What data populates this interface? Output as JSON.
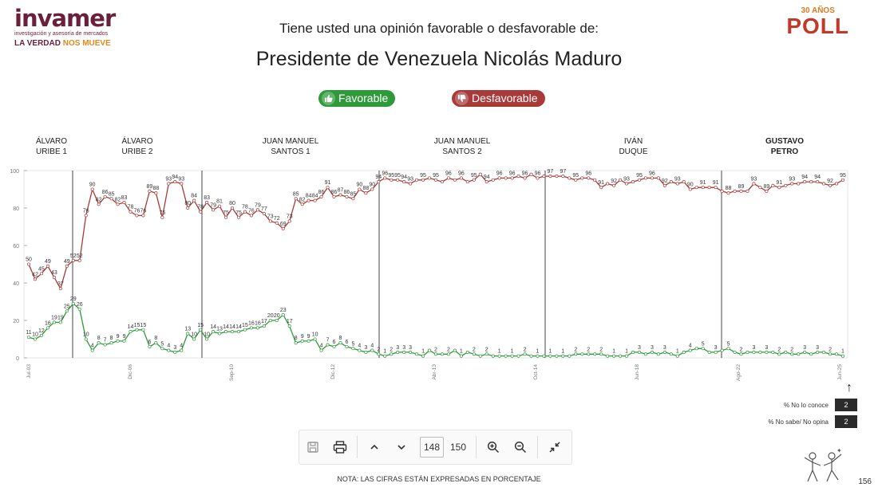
{
  "brand": {
    "logo": "invamer",
    "logo_subtitle": "investigación y asesoría de mercados",
    "tagline_a": "LA VERDAD",
    "tagline_b": "NOS MUEVE",
    "poll_years": "30 AÑOS",
    "poll_word": "POLL"
  },
  "header": {
    "question": "Tiene usted una opinión favorable o desfavorable de:",
    "subject": "Presidente de Venezuela Nicolás Maduro"
  },
  "legend_pills": {
    "favorable": "Favorable",
    "desfavorable": "Desfavorable",
    "favorable_color": "#2e9a3a",
    "desfavorable_color": "#a83a3a"
  },
  "side_legend": {
    "no_conoce_label": "% No lo conoce",
    "no_conoce_value": "2",
    "no_sabe_label": "% No sabe/ No opina",
    "no_sabe_value": "2"
  },
  "toolbar": {
    "current_page": "148",
    "total_pages": "150"
  },
  "footer": {
    "note": "NOTA: LAS CIFRAS ESTÁN EXPRESADAS EN PORCENTAJE",
    "page_number": "156"
  },
  "chart_data": {
    "type": "line",
    "title": "Presidente de Venezuela Nicolás Maduro",
    "ylim": [
      0,
      100
    ],
    "yticks": [
      "0",
      "20",
      "40",
      "60",
      "80",
      "100"
    ],
    "x_ticks_sample": [
      "Jul-03",
      "Dic-06",
      "Sep-10",
      "Dic-12",
      "Abr-13",
      "Oct-14",
      "Jun-18",
      "Ago-22",
      "Jun-25"
    ],
    "periods": [
      {
        "name": "ÁLVARO\nURIBE 1",
        "bold": false
      },
      {
        "name": "ÁLVARO\nURIBE 2",
        "bold": false
      },
      {
        "name": "JUAN MANUEL\nSANTOS 1",
        "bold": false
      },
      {
        "name": "JUAN MANUEL\nSANTOS 2",
        "bold": false
      },
      {
        "name": "IVÁN\nDUQUE",
        "bold": false
      },
      {
        "name": "GUSTAVO\nPETRO",
        "bold": true
      }
    ],
    "series": [
      {
        "name": "Desfavorable",
        "color": "#a83a3a",
        "values": [
          50,
          42,
          45,
          49,
          43,
          37,
          49,
          52,
          52,
          76,
          90,
          82,
          86,
          85,
          82,
          83,
          78,
          76,
          76,
          89,
          88,
          75,
          93,
          94,
          93,
          80,
          84,
          78,
          83,
          79,
          81,
          75,
          80,
          75,
          78,
          76,
          79,
          77,
          73,
          72,
          69,
          73,
          85,
          82,
          84,
          84,
          86,
          91,
          86,
          87,
          86,
          85,
          90,
          88,
          90,
          94,
          96,
          95,
          95,
          94,
          93,
          95,
          95,
          96,
          95,
          94,
          96,
          95,
          96,
          94,
          95,
          98,
          94,
          95,
          96,
          96,
          96,
          97,
          96,
          98,
          96,
          97,
          97,
          97,
          97,
          96,
          95,
          96,
          96,
          95,
          91,
          93,
          92,
          95,
          93,
          94,
          95,
          96,
          96,
          96,
          92,
          94,
          93,
          94,
          90,
          91,
          91,
          91,
          91,
          89,
          88,
          89,
          89,
          89,
          93,
          91,
          89,
          92,
          91,
          92,
          93,
          93,
          94,
          94,
          94,
          93,
          92,
          93,
          95
        ],
        "labels": [
          "50",
          "42",
          "45",
          "49",
          "43",
          "37",
          "49",
          "52",
          "52",
          "76",
          "90",
          "82",
          "86",
          "85",
          "82",
          "83",
          "78",
          "76",
          "76",
          "89",
          "88",
          "75",
          "93",
          "94",
          "93",
          "80",
          "84",
          "78",
          "83",
          "79",
          "81",
          "75",
          "80",
          "75",
          "78",
          "76",
          "79",
          "77",
          "73",
          "72",
          "69",
          "73",
          "85",
          "82",
          "84",
          "84",
          "86",
          "91",
          "86",
          "87",
          "86",
          "85",
          "90",
          "88",
          "90",
          "94",
          "96",
          "95",
          "95",
          "94",
          "93",
          "95",
          "95",
          "96",
          "95",
          "94",
          "96",
          "95",
          "96",
          "94",
          "95",
          "98",
          "94",
          "95",
          "96",
          "96",
          "96",
          "97",
          "96",
          "98",
          "96",
          "97",
          "97",
          "97",
          "97",
          "96",
          "95",
          "96",
          "96",
          "95",
          "91",
          "93",
          "92",
          "95",
          "93",
          "94",
          "95",
          "96",
          "96",
          "96",
          "92",
          "94",
          "93",
          "94",
          "90",
          "91",
          "91",
          "91",
          "91",
          "89",
          "88",
          "89",
          "89",
          "89",
          "93",
          "91",
          "89",
          "92",
          "91",
          "92",
          "93",
          "93",
          "94",
          "94",
          "94",
          "93",
          "92",
          "93",
          "95"
        ]
      },
      {
        "name": "Favorable",
        "color": "#2e9a3a",
        "values": [
          11,
          10,
          12,
          16,
          19,
          19,
          25,
          29,
          26,
          10,
          4,
          8,
          7,
          8,
          9,
          9,
          14,
          15,
          15,
          6,
          8,
          5,
          4,
          3,
          4,
          13,
          10,
          15,
          10,
          14,
          13,
          14,
          14,
          14,
          15,
          16,
          16,
          17,
          20,
          20,
          23,
          17,
          8,
          9,
          9,
          10,
          4,
          7,
          6,
          8,
          6,
          5,
          4,
          3,
          4,
          2,
          1,
          2,
          3,
          3,
          3,
          2,
          1,
          4,
          2,
          2,
          2,
          4,
          1,
          3,
          2,
          1,
          2,
          1,
          1,
          1,
          1,
          1,
          2,
          1,
          1,
          1,
          1,
          1,
          1,
          1,
          2,
          2,
          2,
          2,
          2,
          1,
          1,
          1,
          1,
          3,
          3,
          2,
          3,
          2,
          3,
          2,
          1,
          3,
          4,
          5,
          5,
          3,
          3,
          4,
          5,
          3,
          2,
          3,
          3,
          3,
          3,
          3,
          2,
          3,
          2,
          2,
          3,
          2,
          3,
          3,
          2,
          2,
          1
        ],
        "labels": [
          "11",
          "10",
          "12",
          "16",
          "19",
          "19",
          "25",
          "29",
          "26",
          "10",
          "4",
          "8",
          "7",
          "8",
          "9",
          "9",
          "14",
          "15",
          "15",
          "6",
          "8",
          "5",
          "4",
          "3",
          "4",
          "13",
          "10",
          "15",
          "10",
          "14",
          "13",
          "14",
          "14",
          "14",
          "15",
          "16",
          "16",
          "17",
          "20",
          "20",
          "23",
          "17",
          "8",
          "9",
          "9",
          "10",
          "4",
          "7",
          "6",
          "8",
          "6",
          "5",
          "4",
          "3",
          "4",
          "2",
          "1",
          "2",
          "3",
          "3",
          "3",
          "2",
          "1",
          "4",
          "2",
          "2",
          "2",
          "4",
          "1",
          "3",
          "2",
          "1",
          "2",
          "1",
          "1",
          "1",
          "1",
          "1",
          "2",
          "1",
          "1",
          "1",
          "1",
          "1",
          "1",
          "1",
          "2",
          "2",
          "2",
          "2",
          "2",
          "1",
          "1",
          "1",
          "1",
          "3",
          "3",
          "2",
          "3",
          "2",
          "3",
          "2",
          "1",
          "3",
          "4",
          "5",
          "5",
          "3",
          "3",
          "4",
          "5",
          "3",
          "2",
          "3",
          "3",
          "3",
          "3",
          "3",
          "2",
          "3",
          "2",
          "2",
          "3",
          "2",
          "3",
          "3",
          "2",
          "2",
          "1"
        ]
      }
    ]
  }
}
